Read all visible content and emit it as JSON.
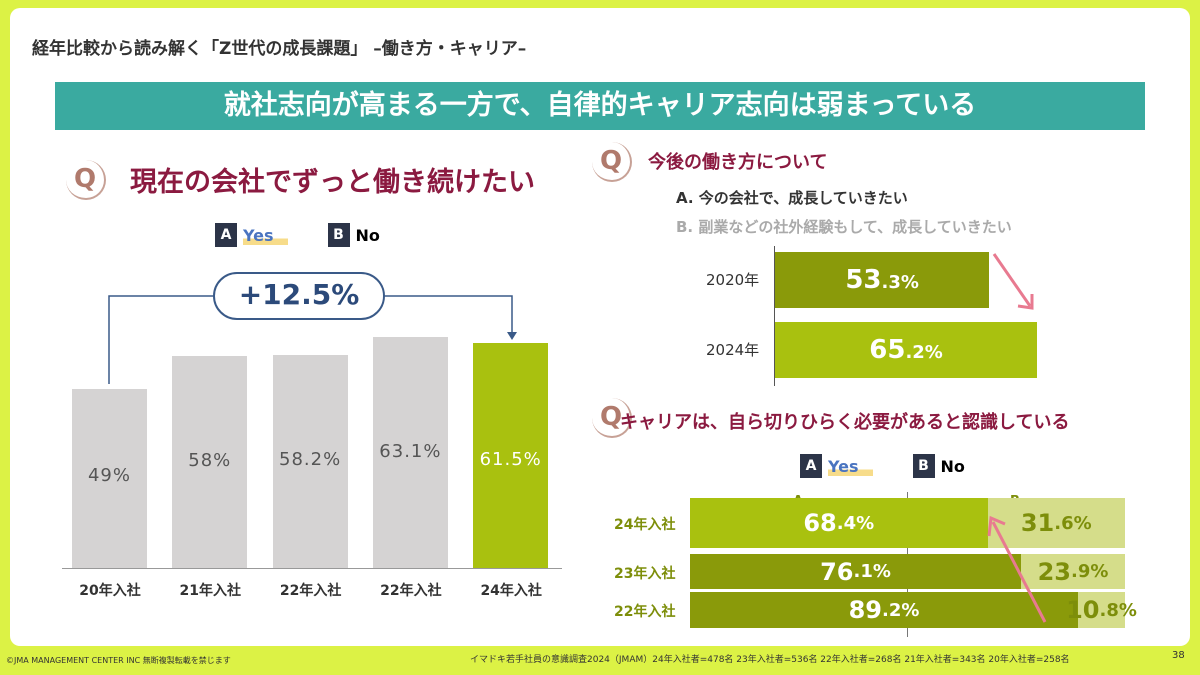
{
  "header": {
    "title": "経年比較から読み解く「Z世代の成長課題」 –働き方・キャリア–",
    "banner": "就社志向が高まる一方で、自律的キャリア志向は弱まっている"
  },
  "q_icon": "Q",
  "legend": {
    "a_box": "A",
    "a_label": "Yes",
    "b_box": "B",
    "b_label": "No"
  },
  "colors": {
    "gray": "#d5d3d3",
    "green": "#a9c10f",
    "olive": "#8a9a0a",
    "pale": "#d5dd8a",
    "maroon": "#8b1a40",
    "teal": "#3aaaa0"
  },
  "chart_data": [
    {
      "type": "bar",
      "title": "現在の会社でずっと働き続けたい",
      "categories": [
        "20年入社",
        "21年入社",
        "22年入社",
        "22年入社",
        "24年入社"
      ],
      "values": [
        49,
        58,
        58.2,
        63.1,
        61.5
      ],
      "labels": [
        "49%",
        "58%",
        "58.2%",
        "63.1%",
        "61.5%"
      ],
      "annotation": "+12.5%",
      "ylim": [
        0,
        100
      ]
    },
    {
      "type": "bar",
      "orientation": "horizontal",
      "title": "今後の働き方について",
      "options": [
        "A. 今の会社で、成長していきたい",
        "B. 副業などの社外経験もして、成長していきたい"
      ],
      "categories": [
        "2020年",
        "2024年"
      ],
      "values": [
        53.3,
        65.2
      ],
      "labels_int": [
        "53",
        "65"
      ],
      "labels_dec": [
        ".3%",
        ".2%"
      ]
    },
    {
      "type": "bar",
      "orientation": "horizontal-stacked",
      "title": "キャリアは、自ら切りひらく必要があると認識している",
      "column_labels": [
        "A",
        "B"
      ],
      "categories": [
        "24年入社",
        "23年入社",
        "22年入社"
      ],
      "series": [
        {
          "name": "A",
          "values": [
            68.4,
            76.1,
            89.2
          ],
          "labels_int": [
            "68",
            "76",
            "89"
          ],
          "labels_dec": [
            ".4%",
            ".1%",
            ".2%"
          ]
        },
        {
          "name": "B",
          "values": [
            31.6,
            23.9,
            10.8
          ],
          "labels_int": [
            "31",
            "23",
            "10"
          ],
          "labels_dec": [
            ".6%",
            ".9%",
            ".8%"
          ]
        }
      ]
    }
  ],
  "footer": {
    "copyright": "©JMA MANAGEMENT CENTER INC 無断複製転載を禁じます",
    "source": "イマドキ若手社員の意識調査2024（JMAM）24年入社者=478名 23年入社者=536名 22年入社者=268名 21年入社者=343名 20年入社者=258名",
    "page": "38"
  }
}
